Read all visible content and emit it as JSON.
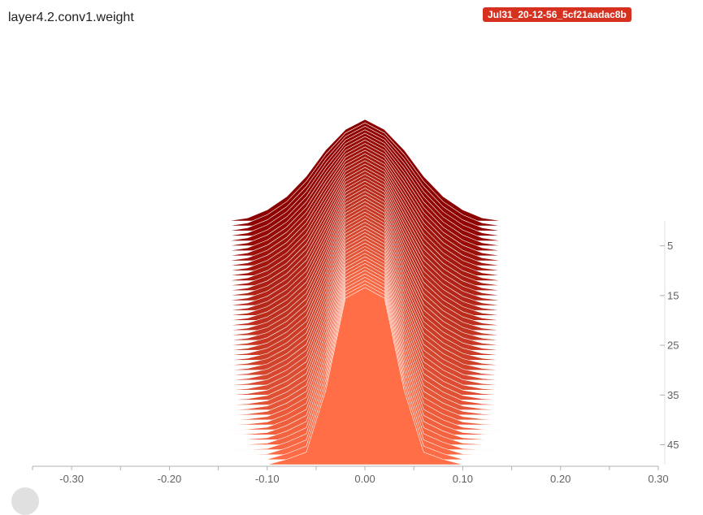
{
  "header": {
    "title": "layer4.2.conv1.weight",
    "run_tag": "Jul31_20-12-56_5cf21aadac8b"
  },
  "colors": {
    "badge": "#d6301f",
    "oldest_step": "#8b0000",
    "newest_step": "#ff6e47",
    "axis": "#b0b0b0"
  },
  "chart_data": {
    "type": "histogram-offset",
    "title": "layer4.2.conv1.weight",
    "xlabel": "",
    "ylabel": "",
    "xlim": [
      -0.34,
      0.3
    ],
    "x_ticks": [
      -0.3,
      -0.2,
      -0.1,
      0.0,
      0.1,
      0.2,
      0.3
    ],
    "x_tick_labels": [
      "-0.30",
      "-0.20",
      "-0.10",
      "0.00",
      "0.10",
      "0.20",
      "0.30"
    ],
    "step_ticks": [
      5,
      15,
      25,
      35,
      45
    ],
    "step_tick_labels": [
      "5",
      "15",
      "25",
      "35",
      "45"
    ],
    "steps": {
      "first": 0,
      "last": 49
    },
    "distribution": {
      "x": [
        -0.34,
        -0.14,
        -0.12,
        -0.1,
        -0.08,
        -0.06,
        -0.04,
        -0.02,
        0.0,
        0.02,
        0.04,
        0.06,
        0.08,
        0.1,
        0.12,
        0.14,
        0.3
      ],
      "first_step": [
        0.0,
        0.0,
        0.03,
        0.11,
        0.24,
        0.44,
        0.7,
        0.9,
        1.0,
        0.9,
        0.7,
        0.44,
        0.24,
        0.11,
        0.03,
        0.0,
        0.0
      ],
      "last_step": [
        0.0,
        0.0,
        0.0,
        0.0,
        0.03,
        0.07,
        0.42,
        0.94,
        1.0,
        0.94,
        0.42,
        0.07,
        0.03,
        0.0,
        0.0,
        0.0,
        0.0
      ]
    }
  }
}
